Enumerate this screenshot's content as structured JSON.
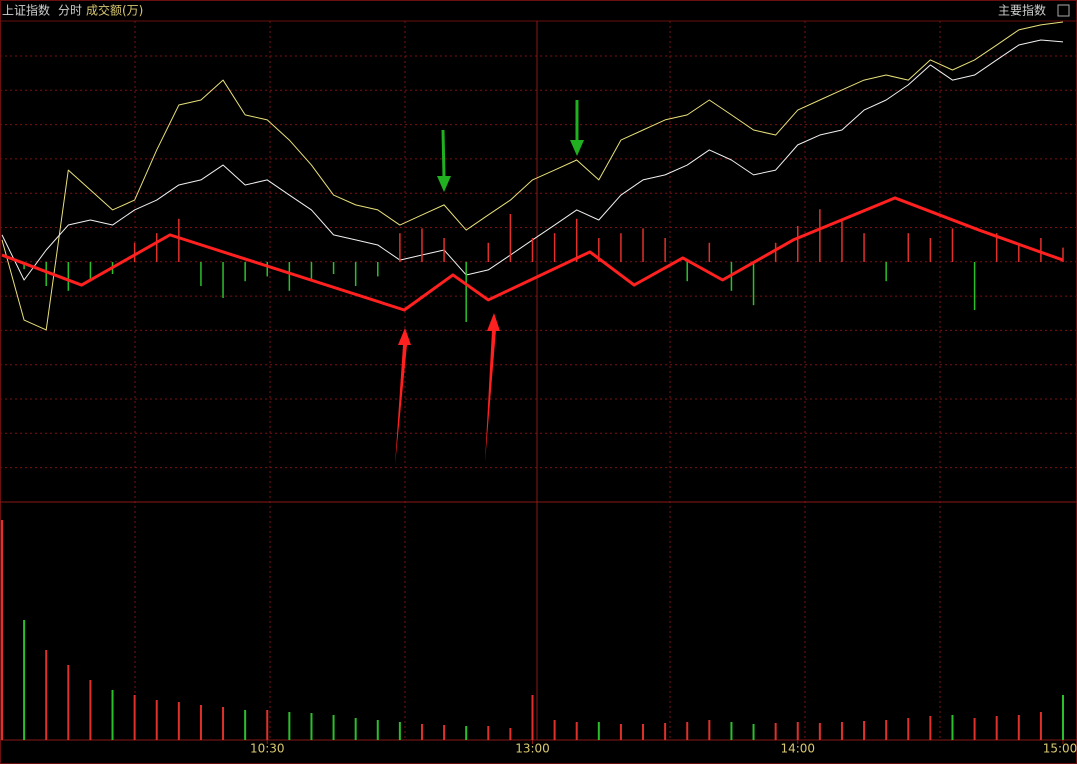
{
  "header": {
    "index": "上证指数",
    "mode": "分时",
    "indicator": "成交额(万)",
    "button": "主要指数"
  },
  "chart_data": [
    {
      "type": "line",
      "x": [
        0,
        5,
        10,
        15,
        20,
        25,
        30,
        35,
        40,
        45,
        50,
        55,
        60,
        65,
        70,
        75,
        80,
        85,
        90,
        95,
        100,
        105,
        110,
        115,
        120,
        125,
        130,
        135,
        140,
        145,
        150,
        155,
        160,
        165,
        170,
        175,
        180,
        185,
        190,
        195,
        200,
        205,
        210,
        215,
        220,
        225,
        230,
        235,
        240
      ],
      "xlim": [
        0,
        240
      ],
      "ylim": [
        -100,
        100
      ],
      "series": [
        {
          "color": "#e8e07a",
          "values": [
            9.2,
            -24.2,
            -28.3,
            38.3,
            30,
            21.7,
            25.8,
            46.7,
            65.4,
            67.5,
            75.8,
            61.3,
            59.2,
            50.8,
            40.4,
            27.9,
            23.8,
            21.7,
            15.4,
            19.6,
            23.8,
            13.3,
            19.6,
            25.8,
            34.2,
            38.3,
            42.5,
            34.2,
            50.8,
            55,
            59.2,
            61.3,
            67.5,
            61.3,
            55,
            52.9,
            63.3,
            67.5,
            71.7,
            75.8,
            77.9,
            75.8,
            84.2,
            80,
            84.2,
            90.4,
            96.7,
            98.8,
            100
          ]
        },
        {
          "color": "#f0f0f0",
          "values": [
            11.3,
            -7.5,
            5,
            15.4,
            17.5,
            15.4,
            21.7,
            25.8,
            32.1,
            34.2,
            40.4,
            32.1,
            34.2,
            27.9,
            21.7,
            11.3,
            9.2,
            7.1,
            0.8,
            2.9,
            5,
            -5.4,
            -3.3,
            2.9,
            9.2,
            15.4,
            21.7,
            17.5,
            27.9,
            34.2,
            36.3,
            40.4,
            46.7,
            42.5,
            36.3,
            38.3,
            48.8,
            52.9,
            55,
            63.3,
            67.5,
            73.8,
            82.1,
            75.8,
            77.9,
            84.2,
            90.4,
            92.5,
            91.7
          ]
        },
        {
          "type": "bar",
          "up_color": "#e0302a",
          "down_color": "#2ac02a",
          "values": [
            0,
            -3,
            -10,
            -12,
            -8,
            -5,
            8,
            12,
            18,
            -10,
            -15,
            -8,
            -6,
            -12,
            -8,
            -5,
            -10,
            -6,
            12,
            14,
            10,
            -25,
            8,
            20,
            10,
            12,
            18,
            10,
            12,
            14,
            10,
            -8,
            8,
            -12,
            -18,
            8,
            15,
            22,
            18,
            12,
            -8,
            12,
            10,
            14,
            -20,
            12,
            8,
            10,
            6
          ]
        },
        {
          "color": "#ff2020",
          "x": [
            0,
            18,
            38,
            91,
            102,
            110,
            133,
            143,
            154,
            163,
            179,
            202,
            221,
            240
          ],
          "values": [
            2.9,
            -9.6,
            11.3,
            -20,
            -5.4,
            -15.8,
            4.2,
            -9.6,
            1.7,
            -7.5,
            9.2,
            26.7,
            13.3,
            0.8
          ]
        }
      ]
    },
    {
      "type": "bar",
      "up_color": "#e0302a",
      "down_color": "#2ac02a",
      "x": [
        0,
        5,
        10,
        15,
        20,
        25,
        30,
        35,
        40,
        45,
        50,
        55,
        60,
        65,
        70,
        75,
        80,
        85,
        90,
        95,
        100,
        105,
        110,
        115,
        120,
        125,
        130,
        135,
        140,
        145,
        150,
        155,
        160,
        165,
        170,
        175,
        180,
        185,
        190,
        195,
        200,
        205,
        210,
        215,
        220,
        225,
        230,
        235,
        240
      ],
      "values": [
        220,
        120,
        90,
        75,
        60,
        50,
        45,
        40,
        38,
        35,
        33,
        30,
        30,
        28,
        27,
        25,
        22,
        20,
        18,
        16,
        15,
        14,
        14,
        12,
        45,
        20,
        18,
        18,
        16,
        16,
        17,
        18,
        20,
        18,
        16,
        17,
        18,
        17,
        18,
        19,
        20,
        22,
        24,
        25,
        22,
        24,
        25,
        28,
        45
      ],
      "xlim": [
        0,
        240
      ],
      "ylim": [
        0,
        230
      ],
      "xticks": [
        {
          "value": 60,
          "label": "10:30"
        },
        {
          "value": 120,
          "label": "13:00"
        },
        {
          "value": 180,
          "label": "14:00"
        },
        {
          "value": 240,
          "label": "15:00"
        }
      ]
    }
  ]
}
